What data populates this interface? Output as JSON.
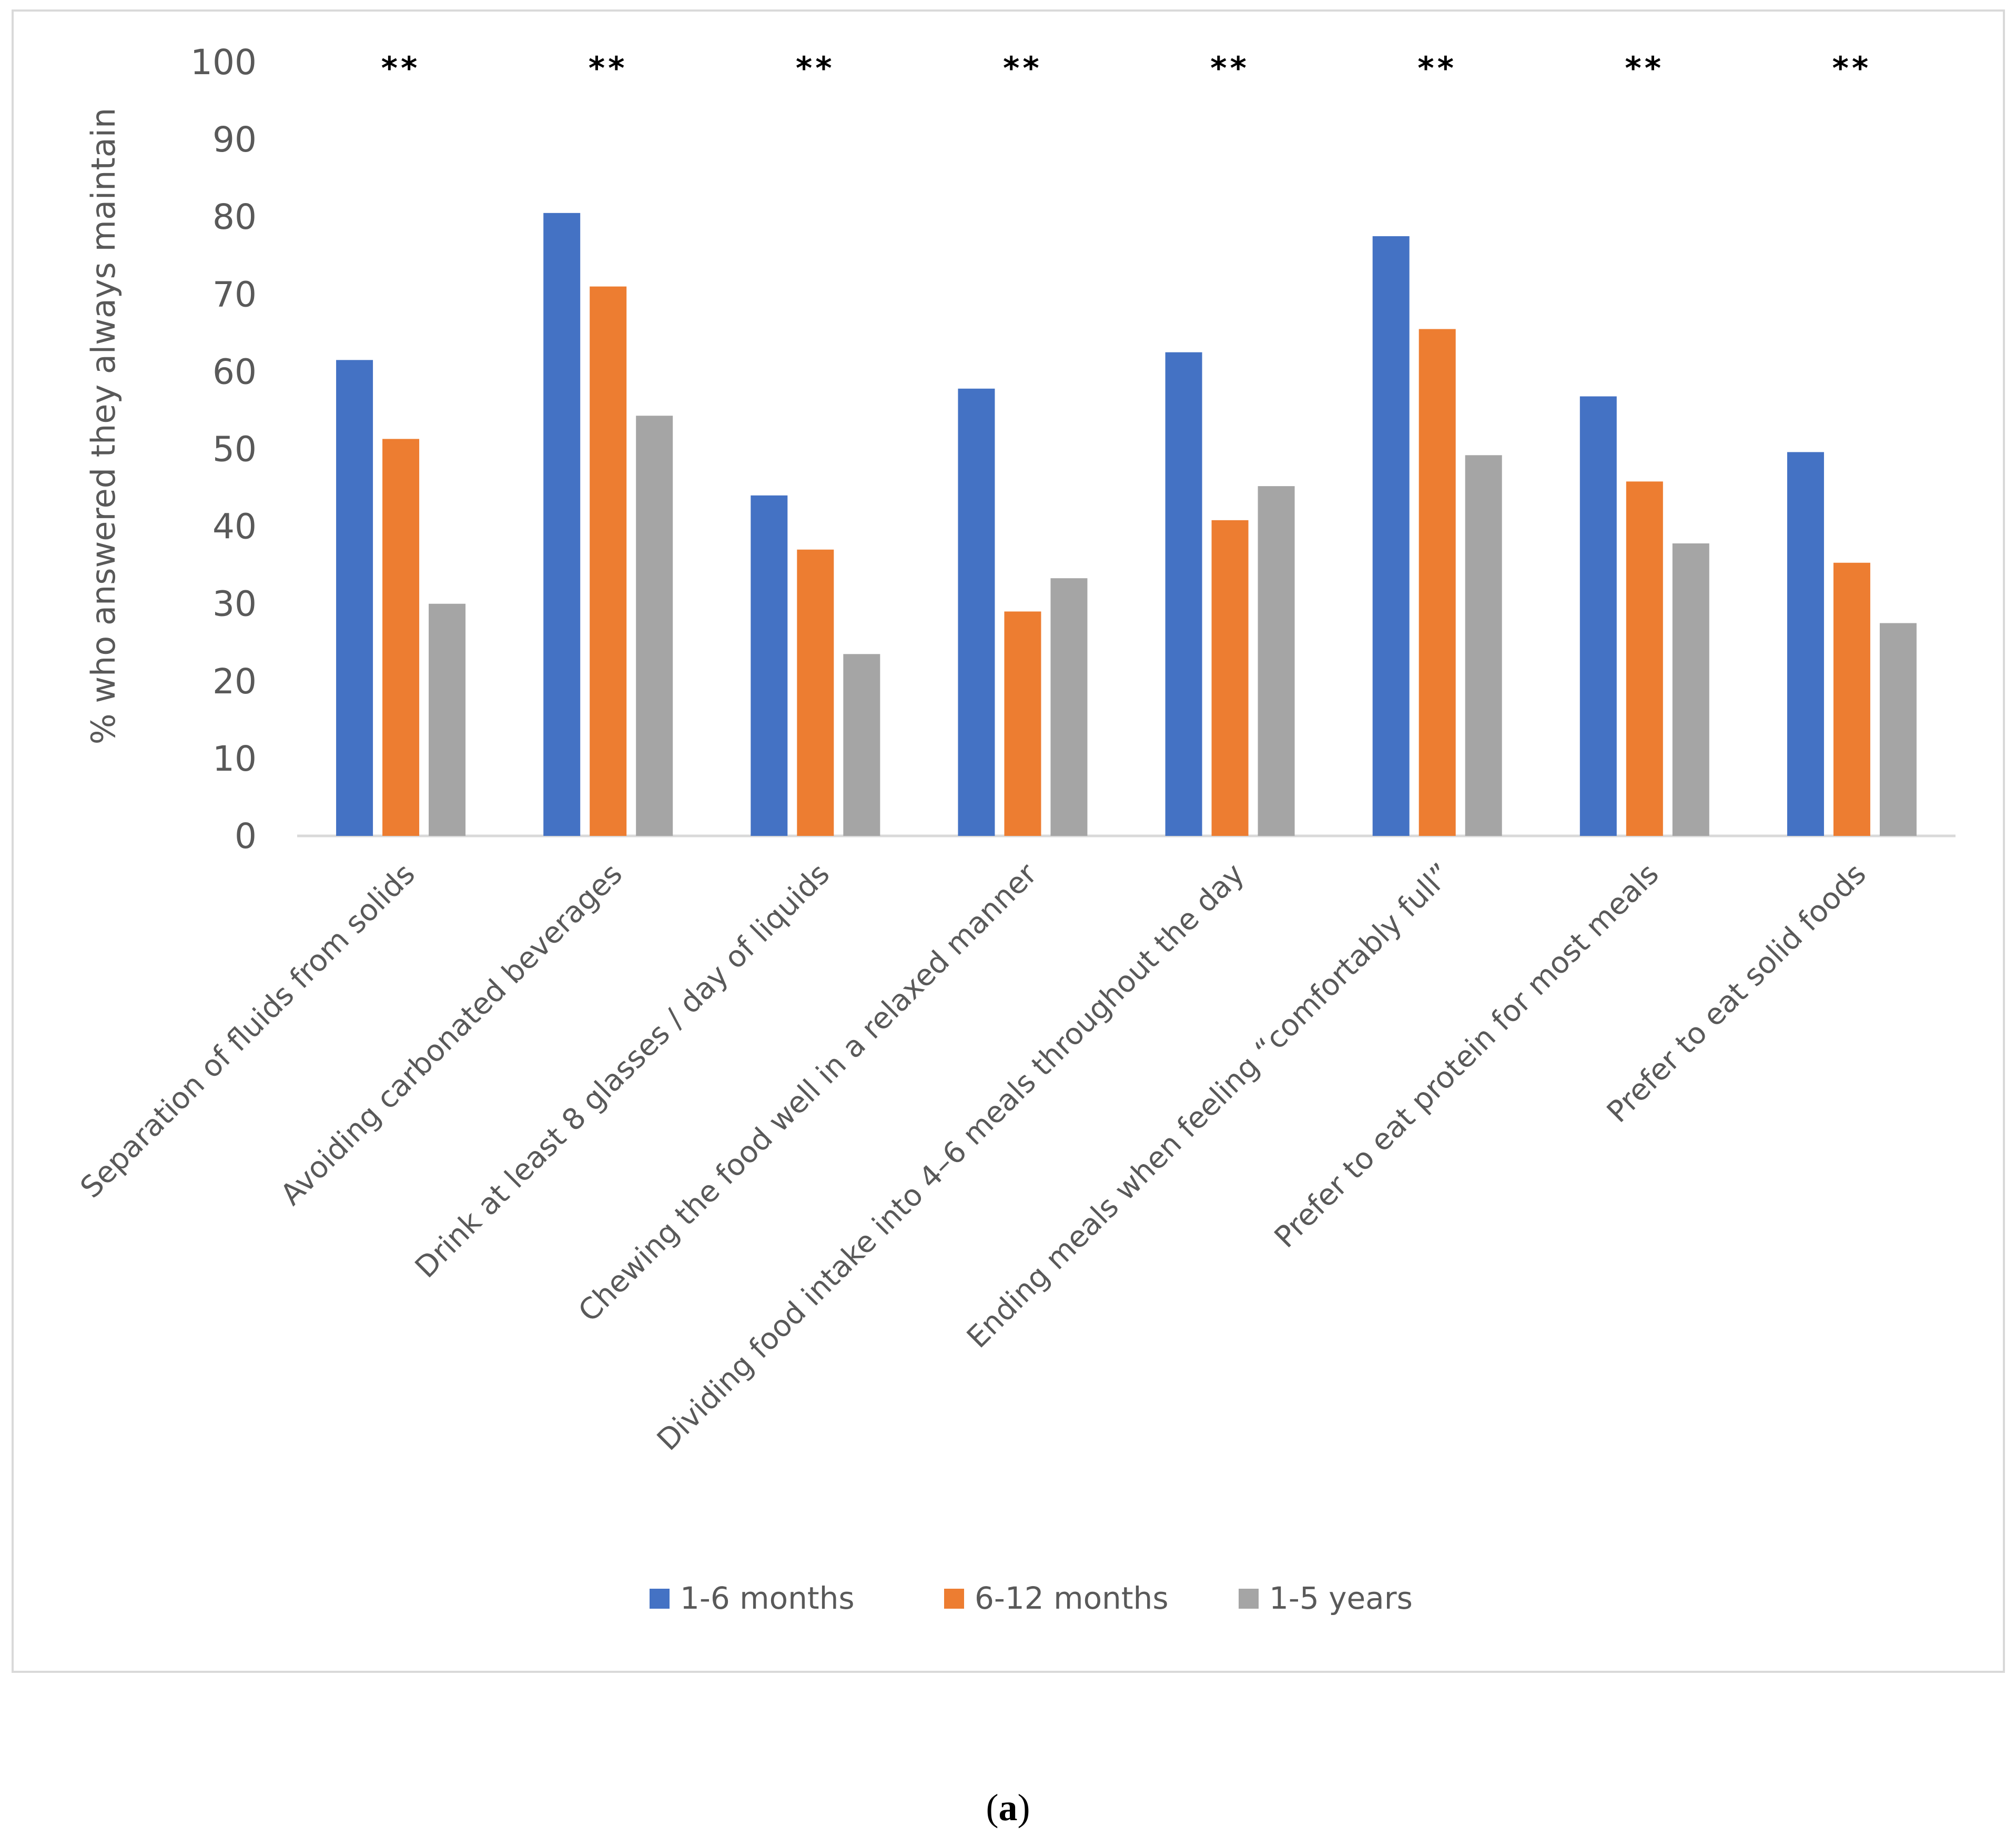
{
  "chart_data": {
    "type": "bar",
    "title": "",
    "ylabel": "% who answered they always maintain",
    "xlabel": "",
    "ylim": [
      0,
      100
    ],
    "yticks": [
      0,
      10,
      20,
      30,
      40,
      50,
      60,
      70,
      80,
      90,
      100
    ],
    "grid": false,
    "legend_position": "bottom",
    "categories": [
      "Separation of fluids from solids",
      "Avoiding carbonated beverages",
      "Drink at least 8 glasses / day of liquids",
      "Chewing the food well in a relaxed manner",
      "Dividing food intake into 4–6 meals throughout the day",
      "Ending meals when feeling “comfortably full”",
      "Prefer to eat protein for most meals",
      "Prefer to eat solid foods"
    ],
    "series": [
      {
        "name": "1-6 months",
        "color": "#4472c4",
        "values": [
          61.5,
          80.5,
          44,
          57.8,
          62.5,
          77.5,
          56.8,
          49.6
        ]
      },
      {
        "name": "6-12 months",
        "color": "#ed7d31",
        "values": [
          51.3,
          71,
          37,
          29,
          40.8,
          65.5,
          45.8,
          35.3
        ]
      },
      {
        "name": "1-5 years",
        "color": "#a5a5a5",
        "values": [
          30,
          54.3,
          23.5,
          33.3,
          45.2,
          49.2,
          37.8,
          27.5
        ]
      }
    ],
    "annotations": [
      "**",
      "**",
      "**",
      "**",
      "**",
      "**",
      "**",
      "**"
    ]
  },
  "caption": {
    "open": "(",
    "letter": "a",
    "close": ")"
  }
}
